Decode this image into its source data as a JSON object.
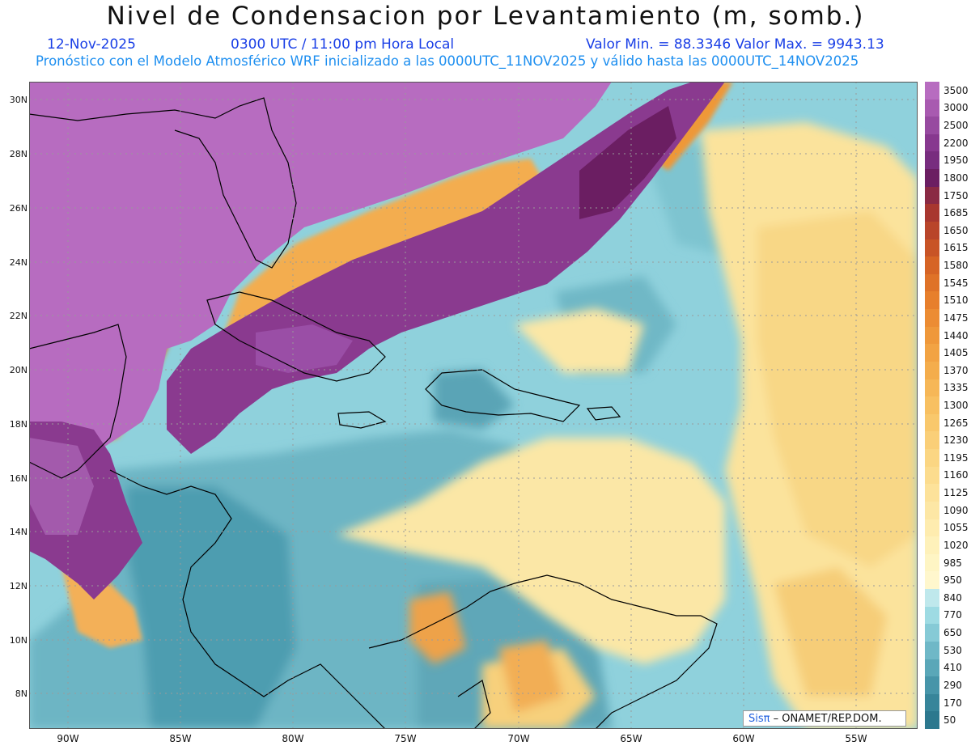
{
  "header": {
    "title": "Nivel de Condensacion por Levantamiento (m, somb.)",
    "date": "12-Nov-2025",
    "time": "0300 UTC / 11:00 pm Hora Local",
    "min_max": "Valor Min. = 88.3346   Valor Max. = 9943.13",
    "forecast_note": "Pronóstico con el Modelo Atmosférico WRF inicializado a las 0000UTC_11NOV2025 y válido hasta las  0000UTC_14NOV2025"
  },
  "map": {
    "lat_labels": [
      "30N",
      "28N",
      "26N",
      "24N",
      "22N",
      "20N",
      "18N",
      "16N",
      "14N",
      "12N",
      "10N",
      "8N"
    ],
    "lon_labels": [
      "90W",
      "85W",
      "80W",
      "75W",
      "70W",
      "65W",
      "60W",
      "55W"
    ],
    "credit_sis": "Sisπ",
    "credit_text": " – ONAMET/REP.DOM."
  },
  "colorbar": {
    "levels": [
      "3500",
      "3000",
      "2500",
      "2200",
      "1950",
      "1800",
      "1750",
      "1685",
      "1650",
      "1615",
      "1580",
      "1545",
      "1510",
      "1475",
      "1440",
      "1405",
      "1370",
      "1335",
      "1300",
      "1265",
      "1230",
      "1195",
      "1160",
      "1125",
      "1090",
      "1055",
      "1020",
      "985",
      "950",
      "840",
      "770",
      "650",
      "530",
      "410",
      "290",
      "170",
      "50"
    ],
    "colors": [
      "#b76cc0",
      "#a85ab0",
      "#974aa0",
      "#87388f",
      "#782d7f",
      "#6b1e62",
      "#8a2a44",
      "#a8372f",
      "#b9452a",
      "#c85426",
      "#d66425",
      "#df7228",
      "#e77f2c",
      "#ec8c33",
      "#ef983a",
      "#f2a343",
      "#f4ad4c",
      "#f6b757",
      "#f8c061",
      "#f9c86c",
      "#facf78",
      "#fbd683",
      "#fcdc8e",
      "#fde29a",
      "#fde7a5",
      "#feecaf",
      "#fef1ba",
      "#fef5c4",
      "#fff7cd",
      "#bfe8ec",
      "#9edbe3",
      "#86cad6",
      "#6fb8c7",
      "#5aa7b8",
      "#4795a9",
      "#37859a",
      "#2c788e"
    ]
  }
}
